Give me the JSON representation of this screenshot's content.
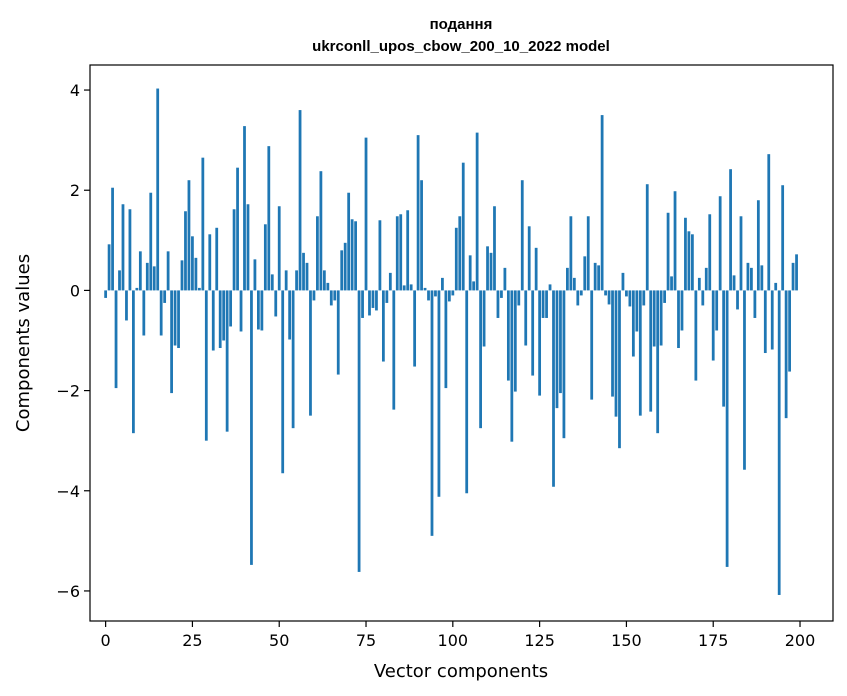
{
  "chart_data": {
    "type": "bar",
    "title_line1": "подання",
    "title_line2": "ukrconll_upos_cbow_200_10_2022 model",
    "xlabel": "Vector components",
    "ylabel": "Components values",
    "xlim": [
      -4.5,
      209.5
    ],
    "ylim": [
      -6.6,
      4.5
    ],
    "xticks": [
      0,
      25,
      50,
      75,
      100,
      125,
      150,
      175,
      200
    ],
    "xtick_labels": [
      "0",
      "25",
      "50",
      "75",
      "100",
      "125",
      "150",
      "175",
      "200"
    ],
    "yticks": [
      -6,
      -4,
      -2,
      0,
      2,
      4
    ],
    "ytick_labels": [
      "−6",
      "−4",
      "−2",
      "0",
      "2",
      "4"
    ],
    "grid": false,
    "color": "#1f77b4",
    "x_start": 0,
    "values": [
      -0.15,
      0.92,
      2.05,
      -1.95,
      0.4,
      1.72,
      -0.6,
      1.62,
      -2.85,
      0.05,
      0.78,
      -0.9,
      0.55,
      1.95,
      0.48,
      4.03,
      -0.9,
      -0.25,
      0.78,
      -2.05,
      -1.1,
      -1.15,
      0.6,
      1.58,
      2.2,
      1.08,
      0.65,
      0.05,
      2.65,
      -3.0,
      1.12,
      -1.2,
      1.25,
      -1.15,
      -1.0,
      -2.82,
      -0.72,
      1.62,
      2.45,
      -0.82,
      3.28,
      1.72,
      -5.48,
      0.62,
      -0.78,
      -0.8,
      1.32,
      2.88,
      0.32,
      -0.52,
      1.68,
      -3.65,
      0.4,
      -0.98,
      -2.75,
      0.4,
      3.6,
      0.75,
      0.55,
      -2.5,
      -0.2,
      1.48,
      2.38,
      0.4,
      0.15,
      -0.3,
      -0.2,
      -1.68,
      0.8,
      0.95,
      1.95,
      1.42,
      1.38,
      -5.62,
      -0.55,
      3.05,
      -0.5,
      -0.35,
      -0.4,
      1.4,
      -1.42,
      -0.25,
      0.35,
      -2.38,
      1.48,
      1.52,
      0.1,
      1.6,
      0.12,
      -1.52,
      3.1,
      2.2,
      0.05,
      -0.2,
      -4.9,
      -0.12,
      -4.12,
      0.25,
      -1.95,
      -0.22,
      -0.1,
      1.25,
      1.48,
      2.55,
      -4.05,
      0.7,
      0.18,
      3.15,
      -2.75,
      -1.12,
      0.88,
      0.75,
      1.68,
      -0.55,
      -0.15,
      0.45,
      -1.8,
      -3.02,
      -2.02,
      -0.3,
      2.2,
      -1.1,
      1.28,
      -1.7,
      0.85,
      -2.1,
      -0.55,
      -0.55,
      0.12,
      -3.92,
      -2.35,
      -2.05,
      -2.95,
      0.45,
      1.48,
      0.25,
      -0.3,
      -0.1,
      0.68,
      1.48,
      -2.18,
      0.55,
      0.5,
      3.5,
      -0.1,
      -0.28,
      -2.12,
      -2.52,
      -3.15,
      0.35,
      -0.12,
      -0.32,
      -1.32,
      -0.82,
      -2.5,
      -0.3,
      2.12,
      -2.42,
      -1.12,
      -2.85,
      -1.1,
      -0.25,
      1.55,
      0.28,
      1.98,
      -1.15,
      -0.8,
      1.45,
      1.18,
      1.12,
      -1.8,
      0.25,
      -0.3,
      0.45,
      1.52,
      -1.4,
      -0.8,
      1.88,
      -2.32,
      -5.52,
      2.42,
      0.3,
      -0.38,
      1.48,
      -3.58,
      0.55,
      0.45,
      -0.55,
      1.8,
      0.5,
      -1.25,
      2.72,
      -1.18,
      0.15,
      -6.08,
      2.1,
      -2.55,
      -1.62,
      0.55,
      0.72
    ]
  }
}
